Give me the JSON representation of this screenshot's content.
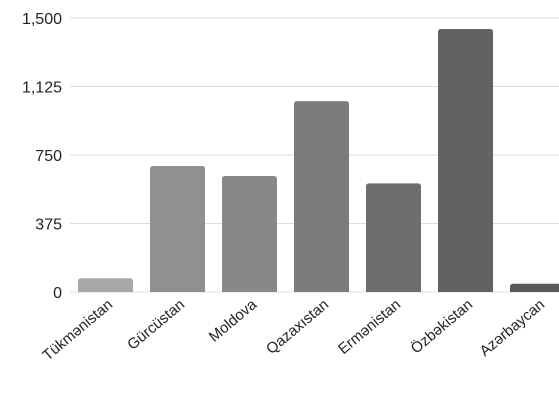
{
  "chart_data": {
    "type": "bar",
    "title": "",
    "xlabel": "",
    "ylabel": "",
    "categories": [
      "Tükmənistan",
      "Gürcüstan",
      "Moldova",
      "Qazaxıstan",
      "Ermənistan",
      "Özbəkistan",
      "Azərbaycan"
    ],
    "values": [
      75,
      690,
      635,
      1045,
      595,
      1440,
      45
    ],
    "ylim": [
      0,
      1500
    ],
    "yticks": [
      0,
      375,
      750,
      1125,
      1500
    ],
    "ytick_labels": [
      "0",
      "375",
      "750",
      "1,125",
      "1,500"
    ],
    "grid": true,
    "legend": "none",
    "bar_colors": [
      "#a8a8a8",
      "#909090",
      "#888888",
      "#7c7c7c",
      "#6e6e6e",
      "#626262",
      "#595959"
    ]
  }
}
